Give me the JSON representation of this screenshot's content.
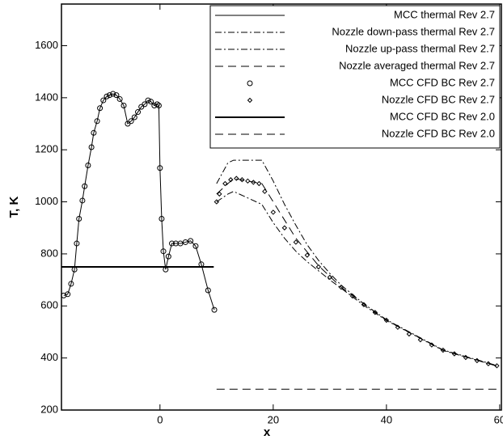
{
  "chart_data": {
    "type": "line",
    "xlabel": "x",
    "ylabel": "T, K",
    "xlim": [
      -17.4,
      60.3
    ],
    "ylim": [
      200,
      1760
    ],
    "xticks": [
      0,
      20,
      40,
      60
    ],
    "yticks": [
      200,
      400,
      600,
      800,
      1000,
      1200,
      1400,
      1600
    ],
    "legend": "upper right",
    "series": [
      {
        "name": "MCC thermal Rev 2.7",
        "color": "#000000",
        "dash": "solid",
        "width": 1,
        "marker": null,
        "x": [
          -17,
          -16.3,
          -15.7,
          -15.1,
          -14.7,
          -14.3,
          -13.7,
          -13.3,
          -12.7,
          -12.1,
          -11.7,
          -11.1,
          -10.6,
          -10,
          -9.4,
          -8.9,
          -8.3,
          -7.7,
          -7.1,
          -6.4,
          -5.7,
          -5.1,
          -4.5,
          -3.9,
          -3.3,
          -2.7,
          -2.1,
          -1.6,
          -1.0,
          -0.5,
          -0.2,
          0,
          0.3,
          0.6,
          1.0,
          1.5,
          2.1,
          2.8,
          3.6,
          4.5,
          5.4,
          6.3,
          7.3,
          8.5,
          9.6
        ],
        "values": [
          640,
          645,
          685,
          740,
          840,
          935,
          1005,
          1060,
          1140,
          1210,
          1265,
          1310,
          1360,
          1390,
          1405,
          1410,
          1415,
          1410,
          1395,
          1370,
          1300,
          1310,
          1325,
          1345,
          1365,
          1375,
          1390,
          1385,
          1370,
          1375,
          1370,
          1130,
          935,
          810,
          740,
          790,
          840,
          840,
          840,
          845,
          850,
          830,
          760,
          660,
          585
        ]
      },
      {
        "name": "Nozzle down-pass thermal Rev 2.7",
        "color": "#000000",
        "dash": "dashdot",
        "width": 1,
        "marker": null,
        "x": [
          10,
          12,
          13,
          18,
          20,
          22,
          24,
          26,
          28,
          30,
          32,
          36,
          40,
          50,
          59.5
        ],
        "values": [
          1070,
          1150,
          1160,
          1160,
          1080,
          990,
          910,
          835,
          775,
          725,
          680,
          608,
          547,
          431,
          371
        ]
      },
      {
        "name": "Nozzle up-pass thermal Rev 2.7",
        "color": "#000000",
        "dash": "dashdot",
        "width": 1,
        "marker": null,
        "x": [
          10,
          12,
          13,
          18,
          20,
          22,
          24,
          26,
          28,
          30,
          32,
          36,
          40,
          50,
          59.5
        ],
        "values": [
          1000,
          1030,
          1040,
          990,
          920,
          860,
          810,
          770,
          735,
          700,
          668,
          602,
          544,
          429,
          369
        ]
      },
      {
        "name": "Nozzle averaged thermal Rev 2.7",
        "color": "#000000",
        "dash": "dashed",
        "width": 1,
        "marker": null,
        "x": [
          10,
          13,
          18,
          20,
          24,
          28,
          32,
          40,
          50,
          59.5
        ],
        "values": [
          1030,
          1090,
          1070,
          1000,
          860,
          755,
          672,
          545,
          430,
          370
        ]
      },
      {
        "name": "MCC CFD BC Rev 2.7",
        "color": "#000000",
        "dash": "none",
        "width": 1,
        "marker": "circle",
        "x": [
          -17,
          -16.3,
          -15.7,
          -15.1,
          -14.7,
          -14.3,
          -13.7,
          -13.3,
          -12.7,
          -12.1,
          -11.7,
          -11.1,
          -10.6,
          -10,
          -9.4,
          -8.9,
          -8.3,
          -7.7,
          -7.1,
          -6.4,
          -5.7,
          -5.1,
          -4.5,
          -3.9,
          -3.3,
          -2.7,
          -2.1,
          -1.6,
          -1.0,
          -0.5,
          -0.2,
          0,
          0.3,
          0.6,
          1.0,
          1.5,
          2.1,
          2.8,
          3.6,
          4.5,
          5.4,
          6.3,
          7.3,
          8.5,
          9.6
        ],
        "values": [
          640,
          645,
          685,
          740,
          840,
          935,
          1005,
          1060,
          1140,
          1210,
          1265,
          1310,
          1360,
          1390,
          1405,
          1410,
          1415,
          1410,
          1395,
          1370,
          1300,
          1310,
          1325,
          1345,
          1365,
          1375,
          1390,
          1385,
          1370,
          1375,
          1370,
          1130,
          935,
          810,
          740,
          790,
          840,
          840,
          840,
          845,
          850,
          830,
          760,
          660,
          585
        ]
      },
      {
        "name": "Nozzle CFD BC Rev 2.7",
        "color": "#000000",
        "dash": "none",
        "width": 1,
        "marker": "diamond",
        "x": [
          10,
          10.5,
          11.5,
          12.5,
          13.5,
          14.5,
          15.5,
          16.5,
          17.5,
          18.5,
          20,
          22,
          24,
          26,
          28,
          30,
          32,
          34,
          36,
          38,
          40,
          42,
          44,
          46,
          48,
          50,
          52,
          54,
          56,
          58,
          59.5
        ],
        "values": [
          1000,
          1030,
          1070,
          1085,
          1090,
          1085,
          1080,
          1075,
          1070,
          1040,
          960,
          900,
          845,
          795,
          750,
          710,
          672,
          638,
          605,
          575,
          545,
          518,
          492,
          470,
          450,
          430,
          416,
          402,
          390,
          378,
          370
        ]
      },
      {
        "name": "MCC CFD BC Rev 2.0",
        "color": "#000000",
        "dash": "solid",
        "width": 2,
        "marker": null,
        "x": [
          -17.4,
          9.5
        ],
        "values": [
          750,
          750
        ]
      },
      {
        "name": "Nozzle CFD BC Rev 2.0",
        "color": "#000000",
        "dash": "dashed",
        "width": 1,
        "marker": null,
        "x": [
          10,
          60
        ],
        "values": [
          280,
          280
        ]
      }
    ]
  }
}
